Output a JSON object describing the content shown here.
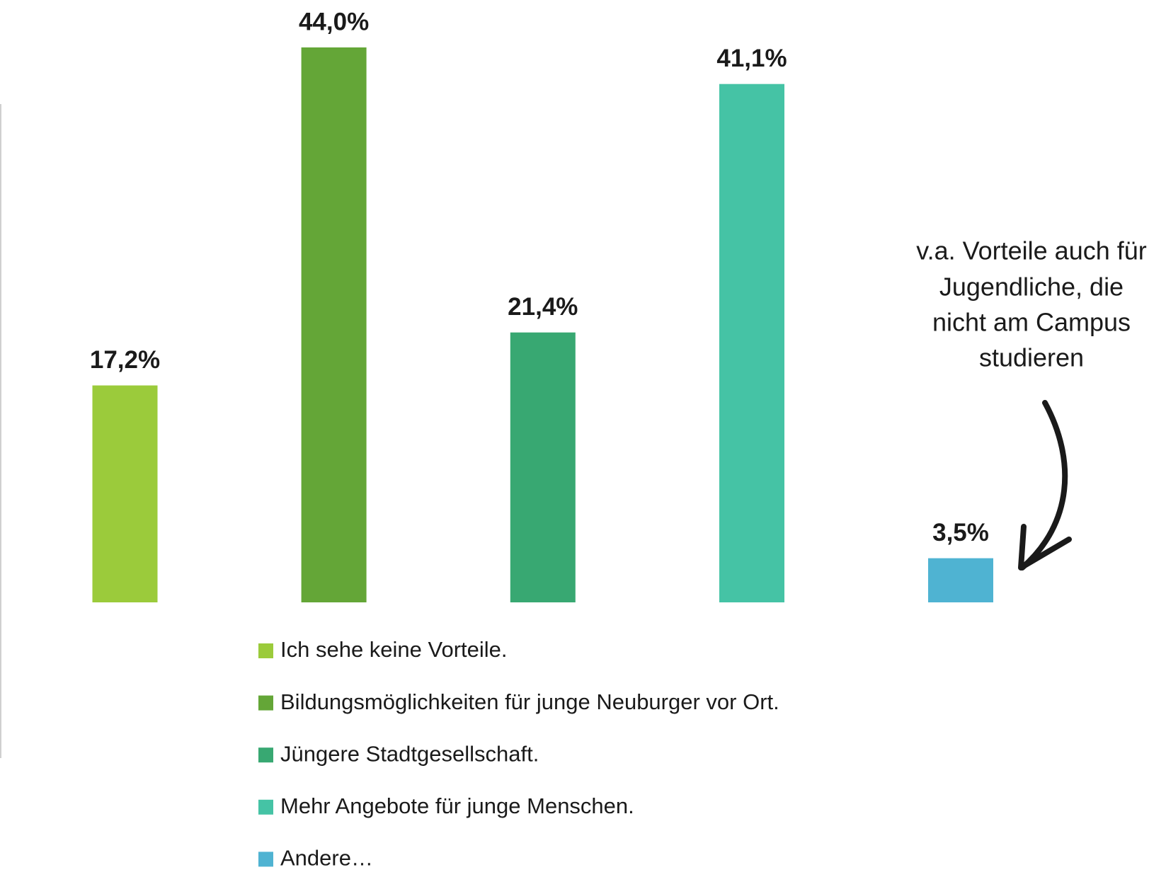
{
  "chart_data": {
    "type": "bar",
    "categories": [
      "Ich sehe keine Vorteile.",
      "Bildungsmöglichkeiten für junge Neuburger vor Ort.",
      "Jüngere Stadtgesellschaft.",
      "Mehr Angebote für junge Menschen.",
      "Andere…"
    ],
    "values": [
      17.2,
      44.0,
      21.4,
      41.1,
      3.5
    ],
    "value_labels": [
      "17,2%",
      "44,0%",
      "21,4%",
      "41,1%",
      "3,5%"
    ],
    "colors": [
      "#9bcb3b",
      "#64a637",
      "#38a872",
      "#45c3a5",
      "#4fb3d2"
    ],
    "annotation": [
      "v.a. Vorteile auch für",
      "Jugendliche, die",
      "nicht am Campus",
      "studieren"
    ]
  }
}
